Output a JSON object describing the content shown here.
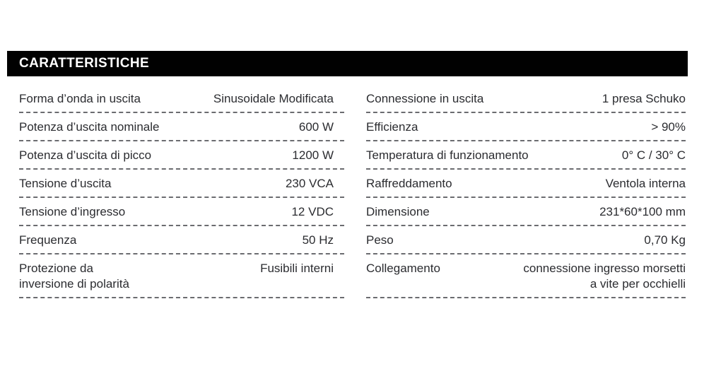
{
  "header": {
    "title": "CARATTERISTICHE"
  },
  "colors": {
    "header_bg": "#010101",
    "header_text": "#ffffff",
    "body_text": "#2b2c30",
    "dash_line": "#6b6c70",
    "background": "#ffffff"
  },
  "table": {
    "left_column": [
      {
        "label": "Forma d’onda in uscita",
        "value": "Sinusoidale Modificata"
      },
      {
        "label": "Potenza d’uscita nominale",
        "value": "600 W"
      },
      {
        "label": "Potenza d’uscita di picco",
        "value": "1200 W"
      },
      {
        "label": "Tensione d’uscita",
        "value": "230 VCA"
      },
      {
        "label": "Tensione d’ingresso",
        "value": "12 VDC"
      },
      {
        "label": "Frequenza",
        "value": "50 Hz"
      },
      {
        "label": "Protezione da\ninversione di polarità",
        "value": "Fusibili interni"
      }
    ],
    "right_column": [
      {
        "label": "Connessione in uscita",
        "value": "1 presa Schuko"
      },
      {
        "label": "Efficienza",
        "value": "> 90%"
      },
      {
        "label": "Temperatura di funzionamento",
        "value": "0° C / 30° C"
      },
      {
        "label": "Raffreddamento",
        "value": "Ventola interna"
      },
      {
        "label": "Dimensione",
        "value": "231*60*100 mm"
      },
      {
        "label": "Peso",
        "value": "0,70 Kg"
      },
      {
        "label": "Collegamento",
        "value": "connessione ingresso morsetti\na vite per occhielli"
      }
    ]
  }
}
